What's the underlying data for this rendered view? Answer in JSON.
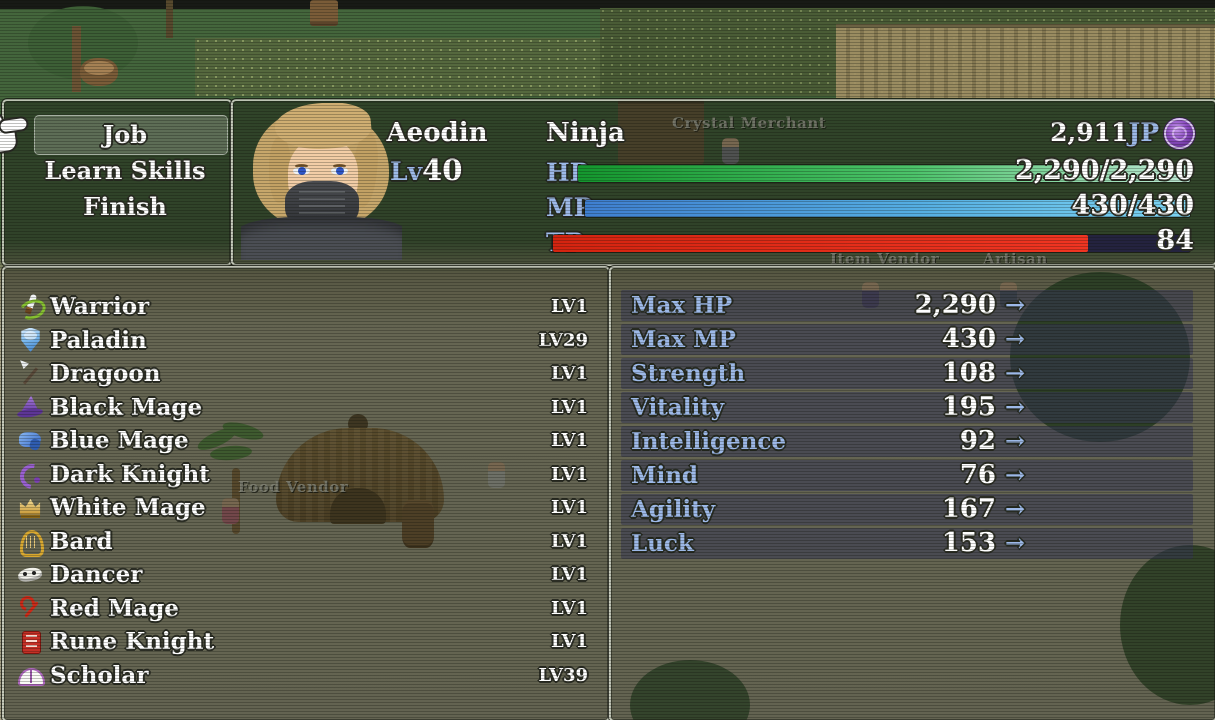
{
  "colors": {
    "label_blue": "#9db9e8",
    "hp_gradient": [
      "#14972e",
      "#bfe9d6"
    ],
    "mp_gradient": [
      "#3f7fd0",
      "#7dd4f2"
    ],
    "tp_fill": "#e82f1c",
    "bar_empty": "#24233f",
    "jp_orb_purple": "#8a4cc0"
  },
  "menu": {
    "items": [
      {
        "label": "Job",
        "selected": true
      },
      {
        "label": "Learn Skills",
        "selected": false
      },
      {
        "label": "Finish",
        "selected": false
      }
    ]
  },
  "status": {
    "name": "Aeodin",
    "level_label": "Lv",
    "level_value": "40",
    "class_name": "Ninja",
    "jp_value": "2,911",
    "jp_label": "JP",
    "bars": [
      {
        "label": "HP",
        "value": "2,290/2,290",
        "fill_pct": 100
      },
      {
        "label": "MP",
        "value": "430/430",
        "fill_pct": 100
      },
      {
        "label": "TP",
        "value": "84",
        "fill_pct": 84
      }
    ]
  },
  "jobs": {
    "items": [
      {
        "icon": "sword",
        "name": "Warrior",
        "level": "LV1"
      },
      {
        "icon": "shield",
        "name": "Paladin",
        "level": "LV29"
      },
      {
        "icon": "lance",
        "name": "Dragoon",
        "level": "LV1"
      },
      {
        "icon": "wizard-hat",
        "name": "Black Mage",
        "level": "LV1"
      },
      {
        "icon": "scarf",
        "name": "Blue Mage",
        "level": "LV1"
      },
      {
        "icon": "dark-horn",
        "name": "Dark Knight",
        "level": "LV1"
      },
      {
        "icon": "crown",
        "name": "White Mage",
        "level": "LV1"
      },
      {
        "icon": "harp",
        "name": "Bard",
        "level": "LV1"
      },
      {
        "icon": "mask",
        "name": "Dancer",
        "level": "LV1"
      },
      {
        "icon": "red-wand",
        "name": "Red Mage",
        "level": "LV1"
      },
      {
        "icon": "rune-tablet",
        "name": "Rune Knight",
        "level": "LV1"
      },
      {
        "icon": "open-book",
        "name": "Scholar",
        "level": "LV39"
      }
    ]
  },
  "stats": {
    "arrow": "→",
    "rows": [
      {
        "label": "Max HP",
        "value": "2,290"
      },
      {
        "label": "Max MP",
        "value": "430"
      },
      {
        "label": "Strength",
        "value": "108"
      },
      {
        "label": "Vitality",
        "value": "195"
      },
      {
        "label": "Intelligence",
        "value": "92"
      },
      {
        "label": "Mind",
        "value": "76"
      },
      {
        "label": "Agility",
        "value": "167"
      },
      {
        "label": "Luck",
        "value": "153"
      }
    ]
  },
  "map": {
    "npc_labels": [
      "Crystal Merchant",
      "Item Vendor",
      "Artisan",
      "Food Vendor"
    ]
  }
}
